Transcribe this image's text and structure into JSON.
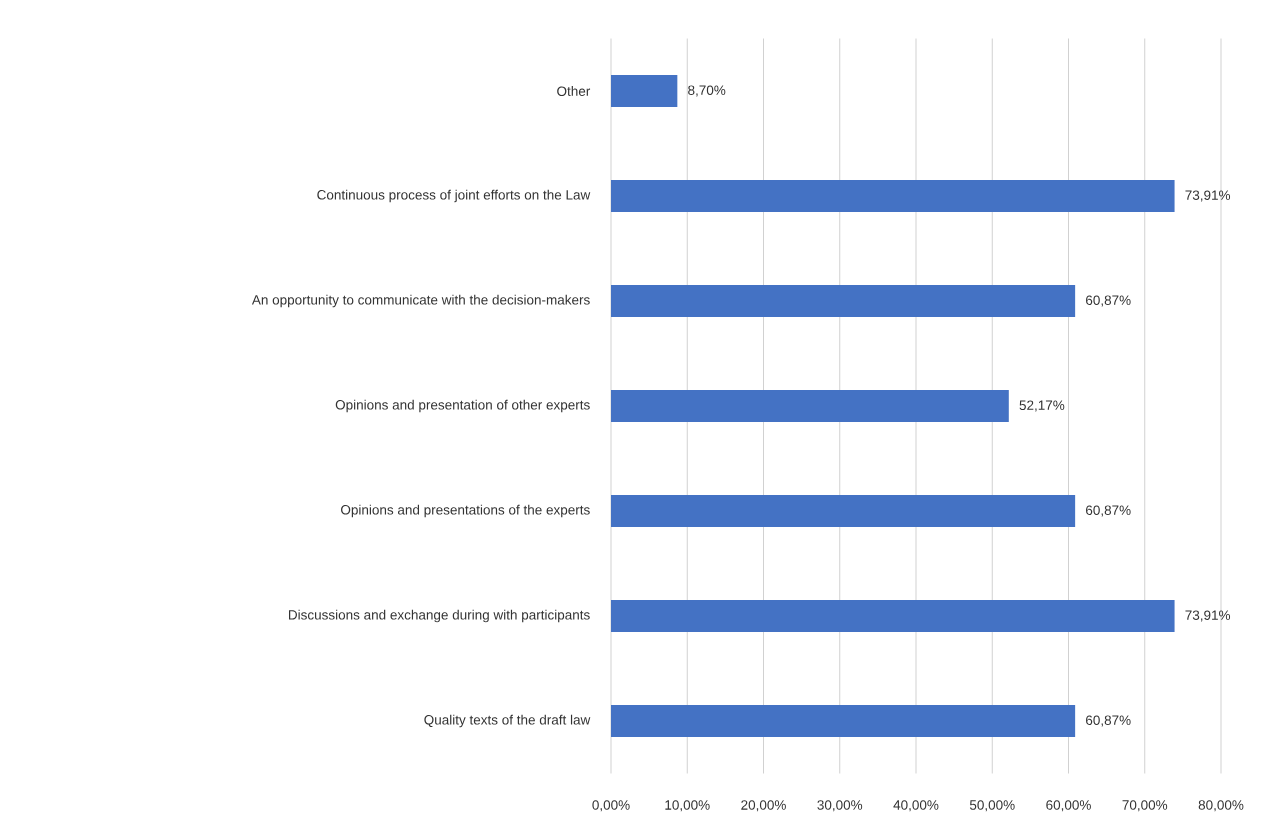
{
  "chart_data": {
    "type": "bar",
    "orientation": "horizontal",
    "categories": [
      "Other",
      "Continuous process of joint efforts on the Law",
      "An opportunity to communicate with the decision-makers",
      "Opinions and presentation of other experts",
      "Opinions and presentations of the experts",
      "Discussions and exchange during with participants",
      "Quality texts of the draft law"
    ],
    "values": [
      8.7,
      73.91,
      60.87,
      52.17,
      60.87,
      73.91,
      60.87
    ],
    "value_labels": [
      "8,70%",
      "73,91%",
      "60,87%",
      "52,17%",
      "60,87%",
      "73,91%",
      "60,87%"
    ],
    "color": "#4472c4",
    "xlim": [
      0,
      80
    ],
    "xticks": [
      {
        "value": 0,
        "label": "0,00%"
      },
      {
        "value": 10,
        "label": "10,00%"
      },
      {
        "value": 20,
        "label": "20,00%"
      },
      {
        "value": 30,
        "label": "30,00%"
      },
      {
        "value": 40,
        "label": "40,00%"
      },
      {
        "value": 50,
        "label": "50,00%"
      },
      {
        "value": 60,
        "label": "60,00%"
      },
      {
        "value": 70,
        "label": "70,00%"
      },
      {
        "value": 80,
        "label": "80,00%"
      }
    ],
    "grid": "x"
  }
}
